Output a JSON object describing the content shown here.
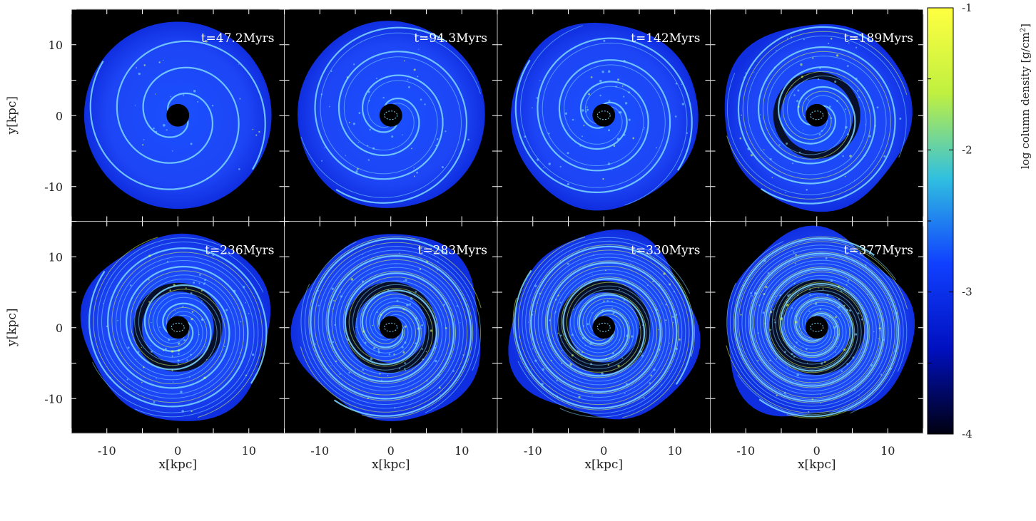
{
  "figure": {
    "panels": [
      {
        "time_label": "t=47.2Myrs"
      },
      {
        "time_label": "t=94.3Myrs"
      },
      {
        "time_label": "t=142Myrs"
      },
      {
        "time_label": "t=189Myrs"
      },
      {
        "time_label": "t=236Myrs"
      },
      {
        "time_label": "t=283Myrs"
      },
      {
        "time_label": "t=330Myrs"
      },
      {
        "time_label": "t=377Myrs"
      }
    ],
    "axes": {
      "x_label": "x[kpc]",
      "y_label": "y[kpc]",
      "x_ticks": [
        "-10",
        "0",
        "10"
      ],
      "y_ticks": [
        "10",
        "0",
        "-10"
      ],
      "range": [
        -15,
        15
      ]
    },
    "colorbar": {
      "label": "log column density [g/cm",
      "label_superscript": "2",
      "label_close": "]",
      "ticks": [
        "-1",
        "-2",
        "-3",
        "-4"
      ],
      "range": [
        -4,
        -1
      ],
      "colors": [
        "#000010",
        "#0010c0",
        "#1040ff",
        "#30c0e0",
        "#c0f040",
        "#ffff40"
      ]
    },
    "colors": {
      "background": "#000000",
      "disk": "#1a4bff",
      "arm": "#7fd8ff",
      "arm_bright": "#d8ff5a",
      "ring": "#050505",
      "label_text": "#ffffff"
    }
  }
}
